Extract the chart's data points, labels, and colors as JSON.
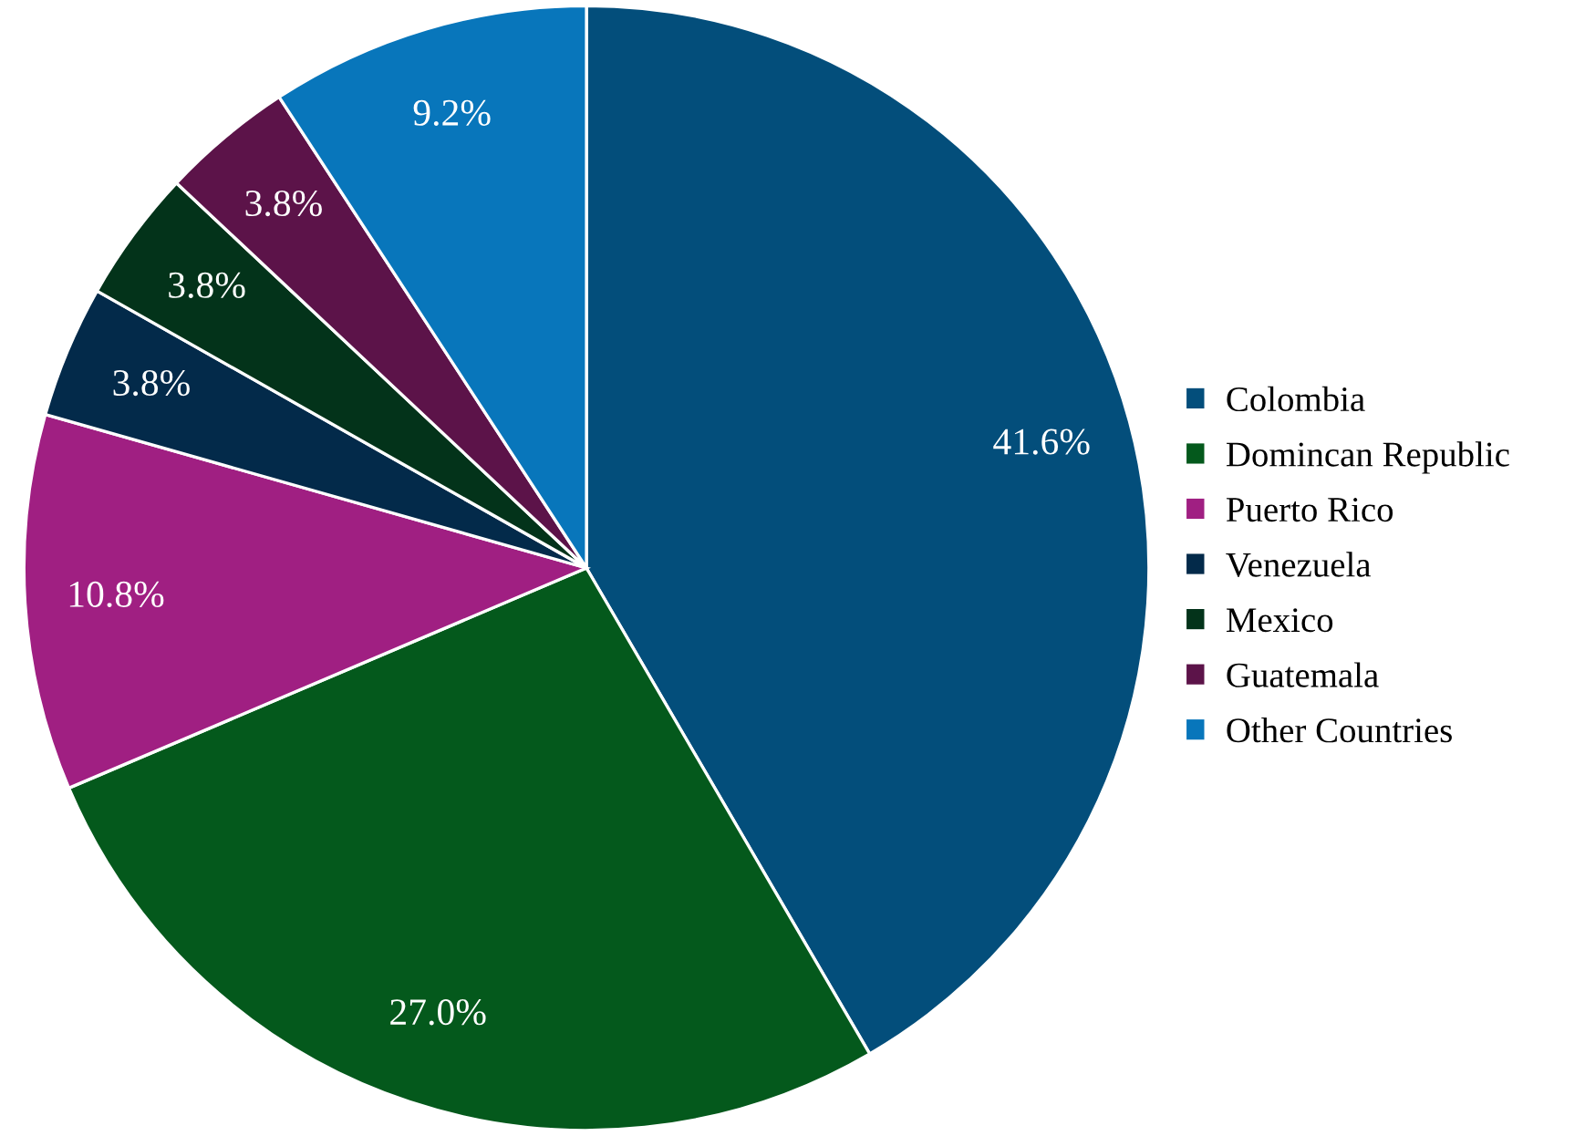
{
  "chart_data": {
    "type": "pie",
    "categories": [
      "Colombia",
      "Domincan Republic",
      "Puerto Rico",
      "Venezuela",
      "Mexico",
      "Guatemala",
      "Other Countries"
    ],
    "values": [
      41.6,
      27.0,
      10.8,
      3.8,
      3.8,
      3.8,
      9.2
    ],
    "colors": [
      "#034e7b",
      "#04591c",
      "#a01f82",
      "#032a4a",
      "#03331a",
      "#5c1349",
      "#0876bb"
    ],
    "value_labels": [
      "41.6%",
      "27.0%",
      "10.8%",
      "3.8%",
      "3.8%",
      "3.8%",
      "9.2%"
    ],
    "legend": "right"
  }
}
